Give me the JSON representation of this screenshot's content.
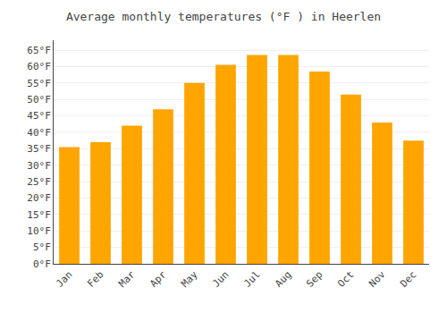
{
  "chart_data": {
    "type": "bar",
    "title": "Average monthly temperatures (°F ) in Heerlen",
    "categories": [
      "Jan",
      "Feb",
      "Mar",
      "Apr",
      "May",
      "Jun",
      "Jul",
      "Aug",
      "Sep",
      "Oct",
      "Nov",
      "Dec"
    ],
    "values": [
      35.5,
      37.0,
      42.0,
      47.0,
      55.0,
      60.5,
      63.5,
      63.5,
      58.5,
      51.5,
      43.0,
      37.5
    ],
    "color": "#FFA500",
    "ylim": [
      0,
      68
    ],
    "yticks": [
      {
        "value": 0,
        "label": "0°F"
      },
      {
        "value": 5,
        "label": "5°F"
      },
      {
        "value": 10,
        "label": "10°F"
      },
      {
        "value": 15,
        "label": "15°F"
      },
      {
        "value": 20,
        "label": "20°F"
      },
      {
        "value": 25,
        "label": "25°F"
      },
      {
        "value": 30,
        "label": "30°F"
      },
      {
        "value": 35,
        "label": "35°F"
      },
      {
        "value": 40,
        "label": "40°F"
      },
      {
        "value": 45,
        "label": "45°F"
      },
      {
        "value": 50,
        "label": "50°F"
      },
      {
        "value": 55,
        "label": "55°F"
      },
      {
        "value": 60,
        "label": "60°F"
      },
      {
        "value": 65,
        "label": "65°F"
      }
    ],
    "grid": true
  }
}
